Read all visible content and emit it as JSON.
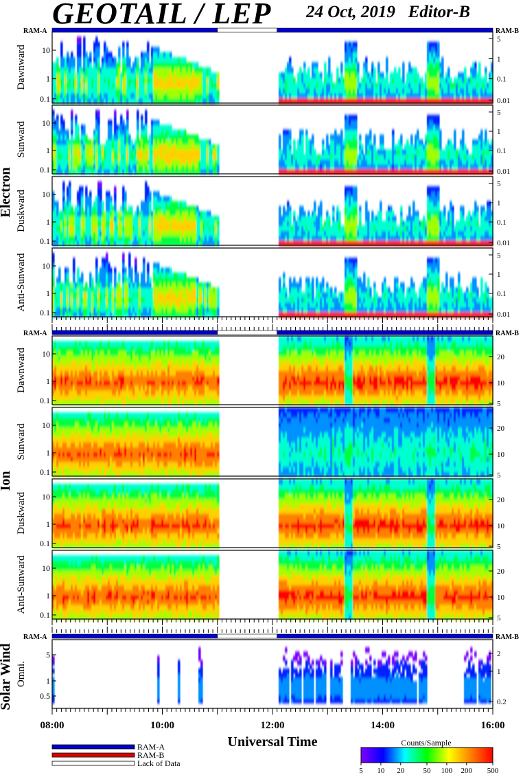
{
  "header": {
    "title": "GEOTAIL / LEP",
    "subtitle": "24 Oct, 2019   Editor-B"
  },
  "ram_labels": {
    "left": "RAM-A",
    "right": "RAM-B"
  },
  "groups": [
    {
      "label": "Electron"
    },
    {
      "label": "Ion"
    },
    {
      "label": "Solar Wind"
    }
  ],
  "chart_data": {
    "type": "heatmap",
    "x_axis": {
      "label": "Universal Time",
      "ticks": [
        "08:00",
        "10:00",
        "12:00",
        "14:00",
        "16:00"
      ],
      "range_hours": [
        8,
        16
      ]
    },
    "data_gaps": [
      {
        "from": "11:00",
        "to": "12:05"
      }
    ],
    "ram_status": [
      {
        "mode": "RAM-A",
        "from": "08:00",
        "to": "11:00"
      },
      {
        "mode": "Lack of Data",
        "from": "11:00",
        "to": "12:05"
      },
      {
        "mode": "RAM-A",
        "from": "12:05",
        "to": "16:00"
      }
    ],
    "panels": [
      {
        "group": "Electron",
        "label": "Dawnward",
        "left_ticks": [
          "10",
          "1",
          "0.1"
        ],
        "right_ticks": [
          "5",
          "1",
          "0.1",
          "0.01"
        ]
      },
      {
        "group": "Electron",
        "label": "Sunward",
        "left_ticks": [
          "10",
          "1",
          "0.1"
        ],
        "right_ticks": [
          "5",
          "1",
          "0.1",
          "0.01"
        ]
      },
      {
        "group": "Electron",
        "label": "Duskward",
        "left_ticks": [
          "10",
          "1",
          "0.1"
        ],
        "right_ticks": [
          "5",
          "1",
          "0.1",
          "0.01"
        ]
      },
      {
        "group": "Electron",
        "label": "Anti-Sunward",
        "left_ticks": [
          "10",
          "1",
          "0.1"
        ],
        "right_ticks": [
          "5",
          "1",
          "0.1",
          "0.01"
        ]
      },
      {
        "group": "Ion",
        "label": "Dawnward",
        "left_ticks": [
          "10",
          "1",
          "0.1"
        ],
        "right_ticks": [
          "20",
          "10",
          "5"
        ]
      },
      {
        "group": "Ion",
        "label": "Sunward",
        "left_ticks": [
          "10",
          "1",
          "0.1"
        ],
        "right_ticks": [
          "20",
          "10",
          "5"
        ]
      },
      {
        "group": "Ion",
        "label": "Duskward",
        "left_ticks": [
          "10",
          "1",
          "0.1"
        ],
        "right_ticks": [
          "20",
          "10",
          "5"
        ]
      },
      {
        "group": "Ion",
        "label": "Anti-Sunward",
        "left_ticks": [
          "10",
          "1",
          "0.1"
        ],
        "right_ticks": [
          "20",
          "10",
          "5"
        ]
      },
      {
        "group": "Solar Wind",
        "label": "Omni.",
        "left_ticks": [
          "5",
          "1",
          "0.5"
        ],
        "right_ticks": [
          "2",
          "1",
          "0.2"
        ]
      }
    ],
    "colorbar": {
      "title": "Counts/Sample",
      "ticks": [
        "5",
        "10",
        "20",
        "50",
        "100",
        "200",
        "500"
      ],
      "colors": [
        "#7f00ff",
        "#0000ff",
        "#00ffff",
        "#00ff00",
        "#ffff00",
        "#ff8000",
        "#ff0000"
      ]
    },
    "legend": [
      {
        "label": "RAM-A",
        "color": "#0000cc"
      },
      {
        "label": "RAM-B",
        "color": "#dd0000"
      },
      {
        "label": "Lack of Data",
        "color": "#ffffff"
      }
    ]
  }
}
